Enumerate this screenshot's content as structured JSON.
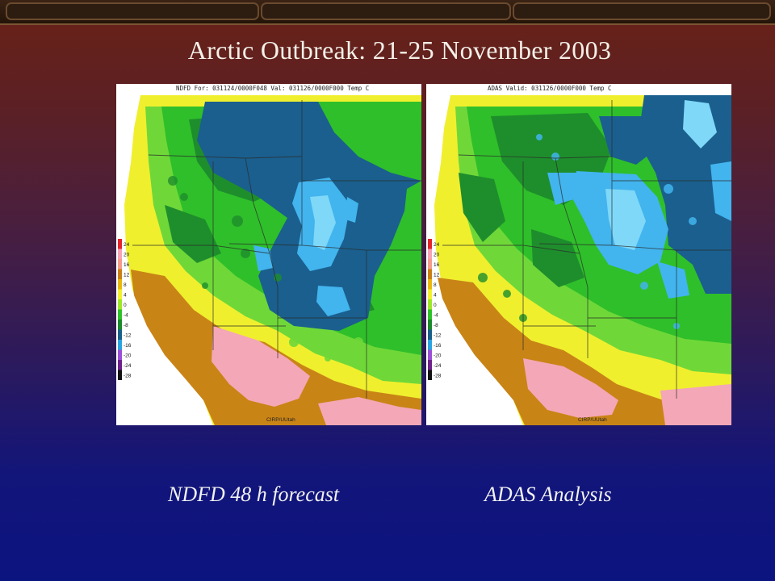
{
  "slide": {
    "title": "Arctic Outbreak: 21-25 November 2003"
  },
  "panels": [
    {
      "header": "NDFD For: 031124/0000F048   Val: 031126/0000F000  Temp C",
      "credit": "CIRP/UUtah",
      "caption": "NDFD 48 h forecast"
    },
    {
      "header": "ADAS Valid: 031126/0000F000  Temp C",
      "credit": "CIRP/UUtah",
      "caption": "ADAS Analysis"
    }
  ],
  "colorbar": {
    "labels": [
      "24",
      "20",
      "16",
      "12",
      "8",
      "4",
      "0",
      "-4",
      "-8",
      "-12",
      "-16",
      "-20",
      "-24",
      "-28"
    ],
    "colors": [
      "#e2232a",
      "#f7a3b4",
      "#f59c8c",
      "#c97f14",
      "#e8b810",
      "#f2f030",
      "#9ee62a",
      "#2fc12a",
      "#1a8a2c",
      "#1a5f8a",
      "#2aa3e0",
      "#9a4fd6",
      "#6e1f8a",
      "#111111"
    ]
  },
  "palette": {
    "sea": "#ffffff",
    "yellow": "#f0ef2e",
    "brown": "#c98416",
    "pink": "#f4a7b6",
    "green_light": "#6fd838",
    "green": "#2fbf2a",
    "green_dark": "#1e8e2c",
    "blue_dark": "#1a5f8e",
    "blue_light": "#42b4ee",
    "cyan": "#7fd8f8"
  }
}
